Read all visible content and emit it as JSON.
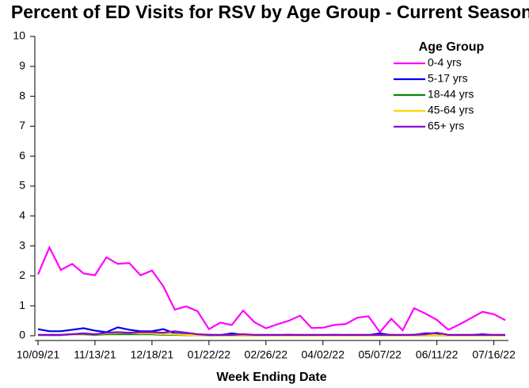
{
  "chart_data": {
    "type": "line",
    "title": "Percent of ED Visits for RSV by Age Group - Current Season",
    "x_label": "Week Ending Date",
    "legend_title": "Age Group",
    "legend_position": "upper right",
    "categories": [
      "10/09/21",
      null,
      null,
      null,
      null,
      "11/13/21",
      null,
      null,
      null,
      null,
      "12/18/21",
      null,
      null,
      null,
      null,
      "01/22/22",
      null,
      null,
      null,
      null,
      "02/26/22",
      null,
      null,
      null,
      null,
      "04/02/22",
      null,
      null,
      null,
      null,
      "05/07/22",
      null,
      null,
      null,
      null,
      "06/11/22",
      null,
      null,
      null,
      null,
      "07/16/22",
      null
    ],
    "ylim": [
      0,
      10
    ],
    "yticks": [
      0,
      1,
      2,
      3,
      4,
      5,
      6,
      7,
      8,
      9,
      10
    ],
    "grid": false,
    "series": [
      {
        "name": "0-4 yrs",
        "color": "#ff00ff",
        "values": [
          2.05,
          2.95,
          2.2,
          2.4,
          2.08,
          2.02,
          2.62,
          2.4,
          2.43,
          2.02,
          2.18,
          1.65,
          0.87,
          0.98,
          0.82,
          0.22,
          0.44,
          0.36,
          0.84,
          0.45,
          0.25,
          0.38,
          0.5,
          0.67,
          0.26,
          0.27,
          0.36,
          0.39,
          0.6,
          0.65,
          0.12,
          0.57,
          0.18,
          0.92,
          0.74,
          0.53,
          0.2,
          0.38,
          0.59,
          0.8,
          0.72,
          0.52
        ]
      },
      {
        "name": "5-17 yrs",
        "color": "#0000ee",
        "values": [
          0.22,
          0.15,
          0.15,
          0.2,
          0.25,
          0.17,
          0.12,
          0.28,
          0.2,
          0.15,
          0.15,
          0.22,
          0.08,
          0.05,
          0.03,
          0.03,
          0.02,
          0.08,
          0.03,
          0.02,
          0.02,
          0.02,
          0.03,
          0.02,
          0.02,
          0.02,
          0.03,
          0.02,
          0.02,
          0.02,
          0.08,
          0.02,
          0.02,
          0.03,
          0.08,
          0.08,
          0.02,
          0.02,
          0.02,
          0.05,
          0.02,
          0.02
        ]
      },
      {
        "name": "18-44 yrs",
        "color": "#008800",
        "values": [
          0.02,
          0.02,
          0.02,
          0.05,
          0.05,
          0.03,
          0.05,
          0.05,
          0.05,
          0.05,
          0.05,
          0.03,
          0.03,
          0.02,
          0.02,
          0.01,
          0.01,
          0.01,
          0.01,
          0.01,
          0.01,
          0.01,
          0.01,
          0.01,
          0.01,
          0.01,
          0.01,
          0.01,
          0.01,
          0.01,
          0.01,
          0.01,
          0.01,
          0.01,
          0.01,
          0.01,
          0.01,
          0.01,
          0.01,
          0.01,
          0.01,
          0.01
        ]
      },
      {
        "name": "45-64 yrs",
        "color": "#ffd700",
        "values": [
          0.02,
          0.03,
          0.03,
          0.05,
          0.08,
          0.05,
          0.08,
          0.1,
          0.1,
          0.08,
          0.08,
          0.05,
          0.05,
          0.03,
          0.02,
          0.02,
          0.02,
          0.01,
          0.01,
          0.01,
          0.02,
          0.01,
          0.01,
          0.01,
          0.01,
          0.01,
          0.01,
          0.01,
          0.01,
          0.01,
          0.01,
          0.01,
          0.01,
          0.01,
          0.01,
          0.01,
          0.01,
          0.01,
          0.01,
          0.01,
          0.01,
          0.01
        ]
      },
      {
        "name": "65+ yrs",
        "color": "#8a00d4",
        "values": [
          0.03,
          0.03,
          0.03,
          0.05,
          0.08,
          0.05,
          0.1,
          0.12,
          0.1,
          0.12,
          0.12,
          0.1,
          0.15,
          0.1,
          0.05,
          0.03,
          0.03,
          0.03,
          0.05,
          0.03,
          0.03,
          0.03,
          0.03,
          0.03,
          0.03,
          0.03,
          0.03,
          0.03,
          0.03,
          0.03,
          0.03,
          0.03,
          0.03,
          0.03,
          0.05,
          0.1,
          0.03,
          0.03,
          0.03,
          0.03,
          0.03,
          0.03
        ]
      }
    ]
  }
}
